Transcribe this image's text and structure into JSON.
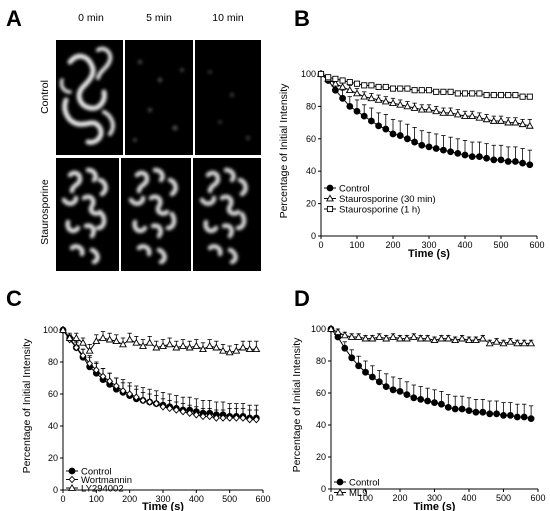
{
  "figure": {
    "panel_letters": [
      "A",
      "B",
      "C",
      "D"
    ],
    "micrographs": {
      "time_labels": [
        "0 min",
        "5  min",
        "10 min"
      ],
      "row_labels": [
        "Control",
        "Staurosporine"
      ]
    }
  },
  "colors": {
    "ink": "#000000",
    "filled_marker": "#000000",
    "open_marker": "#ffffff",
    "micrograph_bg": "#000000",
    "micrograph_signal": "#e8e8e8"
  },
  "chart_data": [
    {
      "panel": "B",
      "type": "line",
      "xlabel": "Time  (s)",
      "ylabel": "Percentage of Initial Intensity",
      "xlim": [
        0,
        600
      ],
      "ylim": [
        0,
        100
      ],
      "xticks": [
        0,
        100,
        200,
        300,
        400,
        500,
        600
      ],
      "yticks": [
        0,
        20,
        40,
        60,
        80,
        100
      ],
      "grid": false,
      "legend_position": "bottom-left",
      "x": [
        0,
        20,
        40,
        60,
        80,
        100,
        120,
        140,
        160,
        180,
        200,
        220,
        240,
        260,
        280,
        300,
        320,
        340,
        360,
        380,
        400,
        420,
        440,
        460,
        480,
        500,
        520,
        540,
        560,
        580
      ],
      "series": [
        {
          "name": "Control",
          "marker": "filled-circle",
          "values": [
            100,
            96,
            90,
            85,
            80,
            77,
            74,
            71,
            68,
            66,
            63,
            62,
            60,
            58,
            56,
            55,
            54,
            53,
            52,
            51,
            50,
            49,
            49,
            48,
            47,
            47,
            46,
            46,
            45,
            44
          ],
          "errors": [
            1,
            3,
            4,
            5,
            6,
            7,
            7,
            8,
            8,
            9,
            9,
            9,
            9,
            9,
            9,
            9,
            9,
            9,
            9,
            9,
            9,
            9,
            9,
            9,
            9,
            9,
            9,
            9,
            9,
            9
          ]
        },
        {
          "name": "Staurosporine (30 min)",
          "marker": "open-triangle",
          "values": [
            100,
            97,
            94,
            92,
            90,
            88,
            86,
            85,
            84,
            83,
            82,
            81,
            80,
            79,
            78,
            78,
            77,
            76,
            76,
            75,
            74,
            74,
            73,
            72,
            71,
            71,
            70,
            70,
            69,
            68
          ],
          "errors": [
            1,
            2,
            3,
            3,
            3,
            3,
            3,
            3,
            3,
            3,
            3,
            3,
            3,
            3,
            3,
            3,
            3,
            3,
            3,
            3,
            3,
            3,
            3,
            3,
            3,
            3,
            3,
            3,
            3,
            4
          ]
        },
        {
          "name": "Staurosporine (1 h)",
          "marker": "open-square",
          "values": [
            100,
            98,
            97,
            96,
            95,
            94,
            93,
            93,
            92,
            92,
            91,
            91,
            91,
            90,
            90,
            90,
            89,
            89,
            89,
            88,
            88,
            88,
            88,
            87,
            87,
            87,
            87,
            87,
            86,
            86
          ],
          "errors": [
            0,
            1,
            1,
            1,
            1,
            1,
            1,
            1,
            1,
            1,
            1,
            1,
            1,
            1,
            1,
            1,
            1,
            1,
            1,
            1,
            1,
            1,
            1,
            1,
            1,
            1,
            1,
            1,
            1,
            1
          ]
        }
      ]
    },
    {
      "panel": "C",
      "type": "line",
      "xlabel": "Time  (s)",
      "ylabel": "Percentage of Initial Intensity",
      "xlim": [
        0,
        600
      ],
      "ylim": [
        0,
        100
      ],
      "xticks": [
        0,
        100,
        200,
        300,
        400,
        500,
        600
      ],
      "yticks": [
        0,
        20,
        40,
        60,
        80,
        100
      ],
      "grid": false,
      "legend_position": "bottom-left",
      "x": [
        0,
        20,
        40,
        60,
        80,
        100,
        120,
        140,
        160,
        180,
        200,
        220,
        240,
        260,
        280,
        300,
        320,
        340,
        360,
        380,
        400,
        420,
        440,
        460,
        480,
        500,
        520,
        540,
        560,
        580
      ],
      "series": [
        {
          "name": "Control",
          "marker": "filled-circle",
          "values": [
            100,
            95,
            89,
            83,
            77,
            73,
            69,
            66,
            63,
            61,
            59,
            57,
            56,
            55,
            54,
            53,
            52,
            51,
            50,
            50,
            49,
            48,
            48,
            47,
            47,
            46,
            46,
            46,
            45,
            45
          ],
          "errors": [
            1,
            3,
            4,
            5,
            6,
            6,
            7,
            7,
            7,
            8,
            8,
            8,
            8,
            8,
            8,
            8,
            8,
            8,
            8,
            8,
            8,
            8,
            8,
            8,
            8,
            8,
            8,
            8,
            8,
            8
          ]
        },
        {
          "name": "Wortmannin",
          "marker": "open-diamond",
          "values": [
            100,
            94,
            89,
            84,
            79,
            75,
            71,
            68,
            65,
            62,
            60,
            58,
            56,
            55,
            54,
            52,
            51,
            50,
            49,
            48,
            47,
            46,
            46,
            45,
            45,
            45,
            45,
            45,
            44,
            44
          ],
          "errors": [
            1,
            2,
            3,
            4,
            5,
            5,
            5,
            5,
            5,
            5,
            5,
            5,
            5,
            5,
            5,
            5,
            5,
            5,
            5,
            5,
            5,
            5,
            5,
            5,
            5,
            6,
            6,
            6,
            6,
            6
          ]
        },
        {
          "name": "LY294002",
          "marker": "open-triangle",
          "values": [
            100,
            95,
            95,
            92,
            87,
            93,
            95,
            94,
            93,
            91,
            94,
            92,
            90,
            92,
            89,
            90,
            91,
            89,
            90,
            89,
            90,
            88,
            90,
            89,
            87,
            86,
            87,
            89,
            88,
            88
          ],
          "errors": [
            1,
            2,
            3,
            3,
            4,
            4,
            4,
            4,
            4,
            4,
            4,
            4,
            4,
            4,
            4,
            4,
            4,
            4,
            4,
            4,
            4,
            4,
            4,
            4,
            4,
            4,
            4,
            4,
            5,
            5
          ]
        }
      ]
    },
    {
      "panel": "D",
      "type": "line",
      "xlabel": "Time  (s)",
      "ylabel": "Percentage of Initial Intensity",
      "xlim": [
        0,
        600
      ],
      "ylim": [
        0,
        100
      ],
      "xticks": [
        0,
        100,
        200,
        300,
        400,
        500,
        600
      ],
      "yticks": [
        0,
        20,
        40,
        60,
        80,
        100
      ],
      "grid": false,
      "legend_position": "bottom-left",
      "x": [
        0,
        20,
        40,
        60,
        80,
        100,
        120,
        140,
        160,
        180,
        200,
        220,
        240,
        260,
        280,
        300,
        320,
        340,
        360,
        380,
        400,
        420,
        440,
        460,
        480,
        500,
        520,
        540,
        560,
        580
      ],
      "series": [
        {
          "name": "Control",
          "marker": "filled-circle",
          "values": [
            100,
            95,
            88,
            82,
            77,
            73,
            70,
            67,
            64,
            62,
            61,
            59,
            57,
            56,
            55,
            54,
            53,
            51,
            50,
            50,
            49,
            48,
            48,
            47,
            47,
            46,
            46,
            45,
            45,
            44
          ],
          "errors": [
            1,
            3,
            4,
            5,
            6,
            7,
            7,
            7,
            8,
            8,
            8,
            8,
            8,
            8,
            8,
            8,
            8,
            8,
            8,
            8,
            8,
            8,
            8,
            8,
            8,
            8,
            8,
            8,
            8,
            8
          ]
        },
        {
          "name": "ML9",
          "marker": "open-triangle",
          "values": [
            100,
            98,
            96,
            95,
            95,
            94,
            94,
            95,
            94,
            95,
            94,
            94,
            95,
            94,
            94,
            93,
            94,
            94,
            93,
            94,
            93,
            93,
            94,
            91,
            92,
            91,
            92,
            91,
            91,
            91
          ],
          "errors": [
            1,
            2,
            2,
            2,
            2,
            2,
            2,
            2,
            2,
            2,
            2,
            2,
            2,
            2,
            2,
            2,
            2,
            2,
            2,
            2,
            2,
            2,
            2,
            2,
            2,
            2,
            2,
            2,
            2,
            2
          ]
        }
      ]
    }
  ]
}
